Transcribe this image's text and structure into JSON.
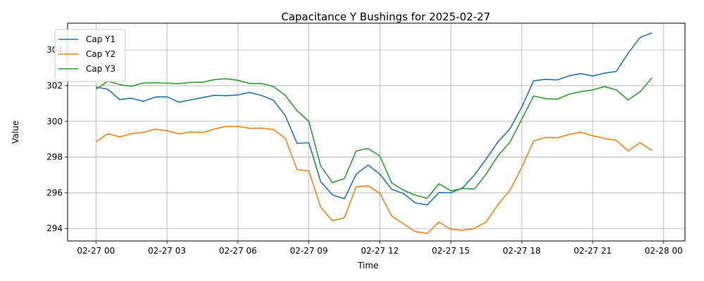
{
  "chart_data": {
    "type": "line",
    "title": "Capacitance Y Bushings for 2025-02-27",
    "xlabel": "Time",
    "ylabel": "Value",
    "x_tick_labels": [
      "02-27 00",
      "02-27 03",
      "02-27 06",
      "02-27 09",
      "02-27 12",
      "02-27 15",
      "02-27 18",
      "02-27 21",
      "02-28 00"
    ],
    "x_hours": [
      0,
      0.5,
      1,
      1.5,
      2,
      2.5,
      3,
      3.5,
      4,
      4.5,
      5,
      5.5,
      6,
      6.5,
      7,
      7.5,
      8,
      8.5,
      9,
      9.5,
      10,
      10.5,
      11,
      11.5,
      12,
      12.5,
      13,
      13.5,
      14,
      14.5,
      15,
      15.5,
      16,
      16.5,
      17,
      17.5,
      18,
      18.5,
      19,
      19.5,
      20,
      20.5,
      21,
      21.5,
      22,
      22.5,
      23,
      23.5
    ],
    "xlim_hours": [
      -1.2,
      24.9
    ],
    "y_ticks": [
      294,
      296,
      298,
      300,
      302,
      304
    ],
    "ylim": [
      293.3,
      305.5
    ],
    "grid": true,
    "legend_position": "top-left",
    "series": [
      {
        "name": "Cap Y1",
        "color": "#1f77b4",
        "values": [
          301.92,
          301.8,
          301.22,
          301.3,
          301.12,
          301.36,
          301.38,
          301.07,
          301.2,
          301.33,
          301.46,
          301.44,
          301.48,
          301.62,
          301.45,
          301.18,
          300.33,
          298.77,
          298.8,
          296.62,
          295.88,
          295.66,
          297.04,
          297.55,
          297.05,
          296.2,
          295.95,
          295.43,
          295.32,
          296.01,
          296.0,
          296.27,
          297.0,
          297.9,
          298.86,
          299.58,
          300.8,
          302.27,
          302.36,
          302.32,
          302.55,
          302.68,
          302.54,
          302.7,
          302.8,
          303.82,
          304.7,
          304.96
        ]
      },
      {
        "name": "Cap Y2",
        "color": "#ff7f0e",
        "values": [
          298.85,
          299.31,
          299.13,
          299.31,
          299.38,
          299.56,
          299.48,
          299.3,
          299.41,
          299.37,
          299.57,
          299.72,
          299.72,
          299.61,
          299.62,
          299.54,
          299.06,
          297.3,
          297.22,
          295.18,
          294.43,
          294.6,
          296.33,
          296.39,
          295.98,
          294.7,
          294.26,
          293.82,
          293.72,
          294.36,
          293.95,
          293.9,
          294.0,
          294.38,
          295.34,
          296.14,
          297.42,
          298.9,
          299.1,
          299.08,
          299.27,
          299.39,
          299.19,
          299.04,
          298.93,
          298.34,
          298.8,
          298.37
        ]
      },
      {
        "name": "Cap Y3",
        "color": "#2ca02c",
        "values": [
          301.79,
          302.25,
          302.06,
          301.96,
          302.15,
          302.16,
          302.14,
          302.11,
          302.18,
          302.19,
          302.34,
          302.39,
          302.3,
          302.12,
          302.12,
          301.95,
          301.46,
          300.6,
          300.0,
          297.5,
          296.57,
          296.8,
          298.34,
          298.48,
          298.06,
          296.56,
          296.14,
          295.87,
          295.69,
          296.5,
          296.11,
          296.24,
          296.21,
          297.06,
          298.09,
          298.83,
          300.12,
          301.42,
          301.27,
          301.24,
          301.52,
          301.67,
          301.76,
          301.95,
          301.76,
          301.2,
          301.65,
          302.44
        ]
      }
    ]
  }
}
